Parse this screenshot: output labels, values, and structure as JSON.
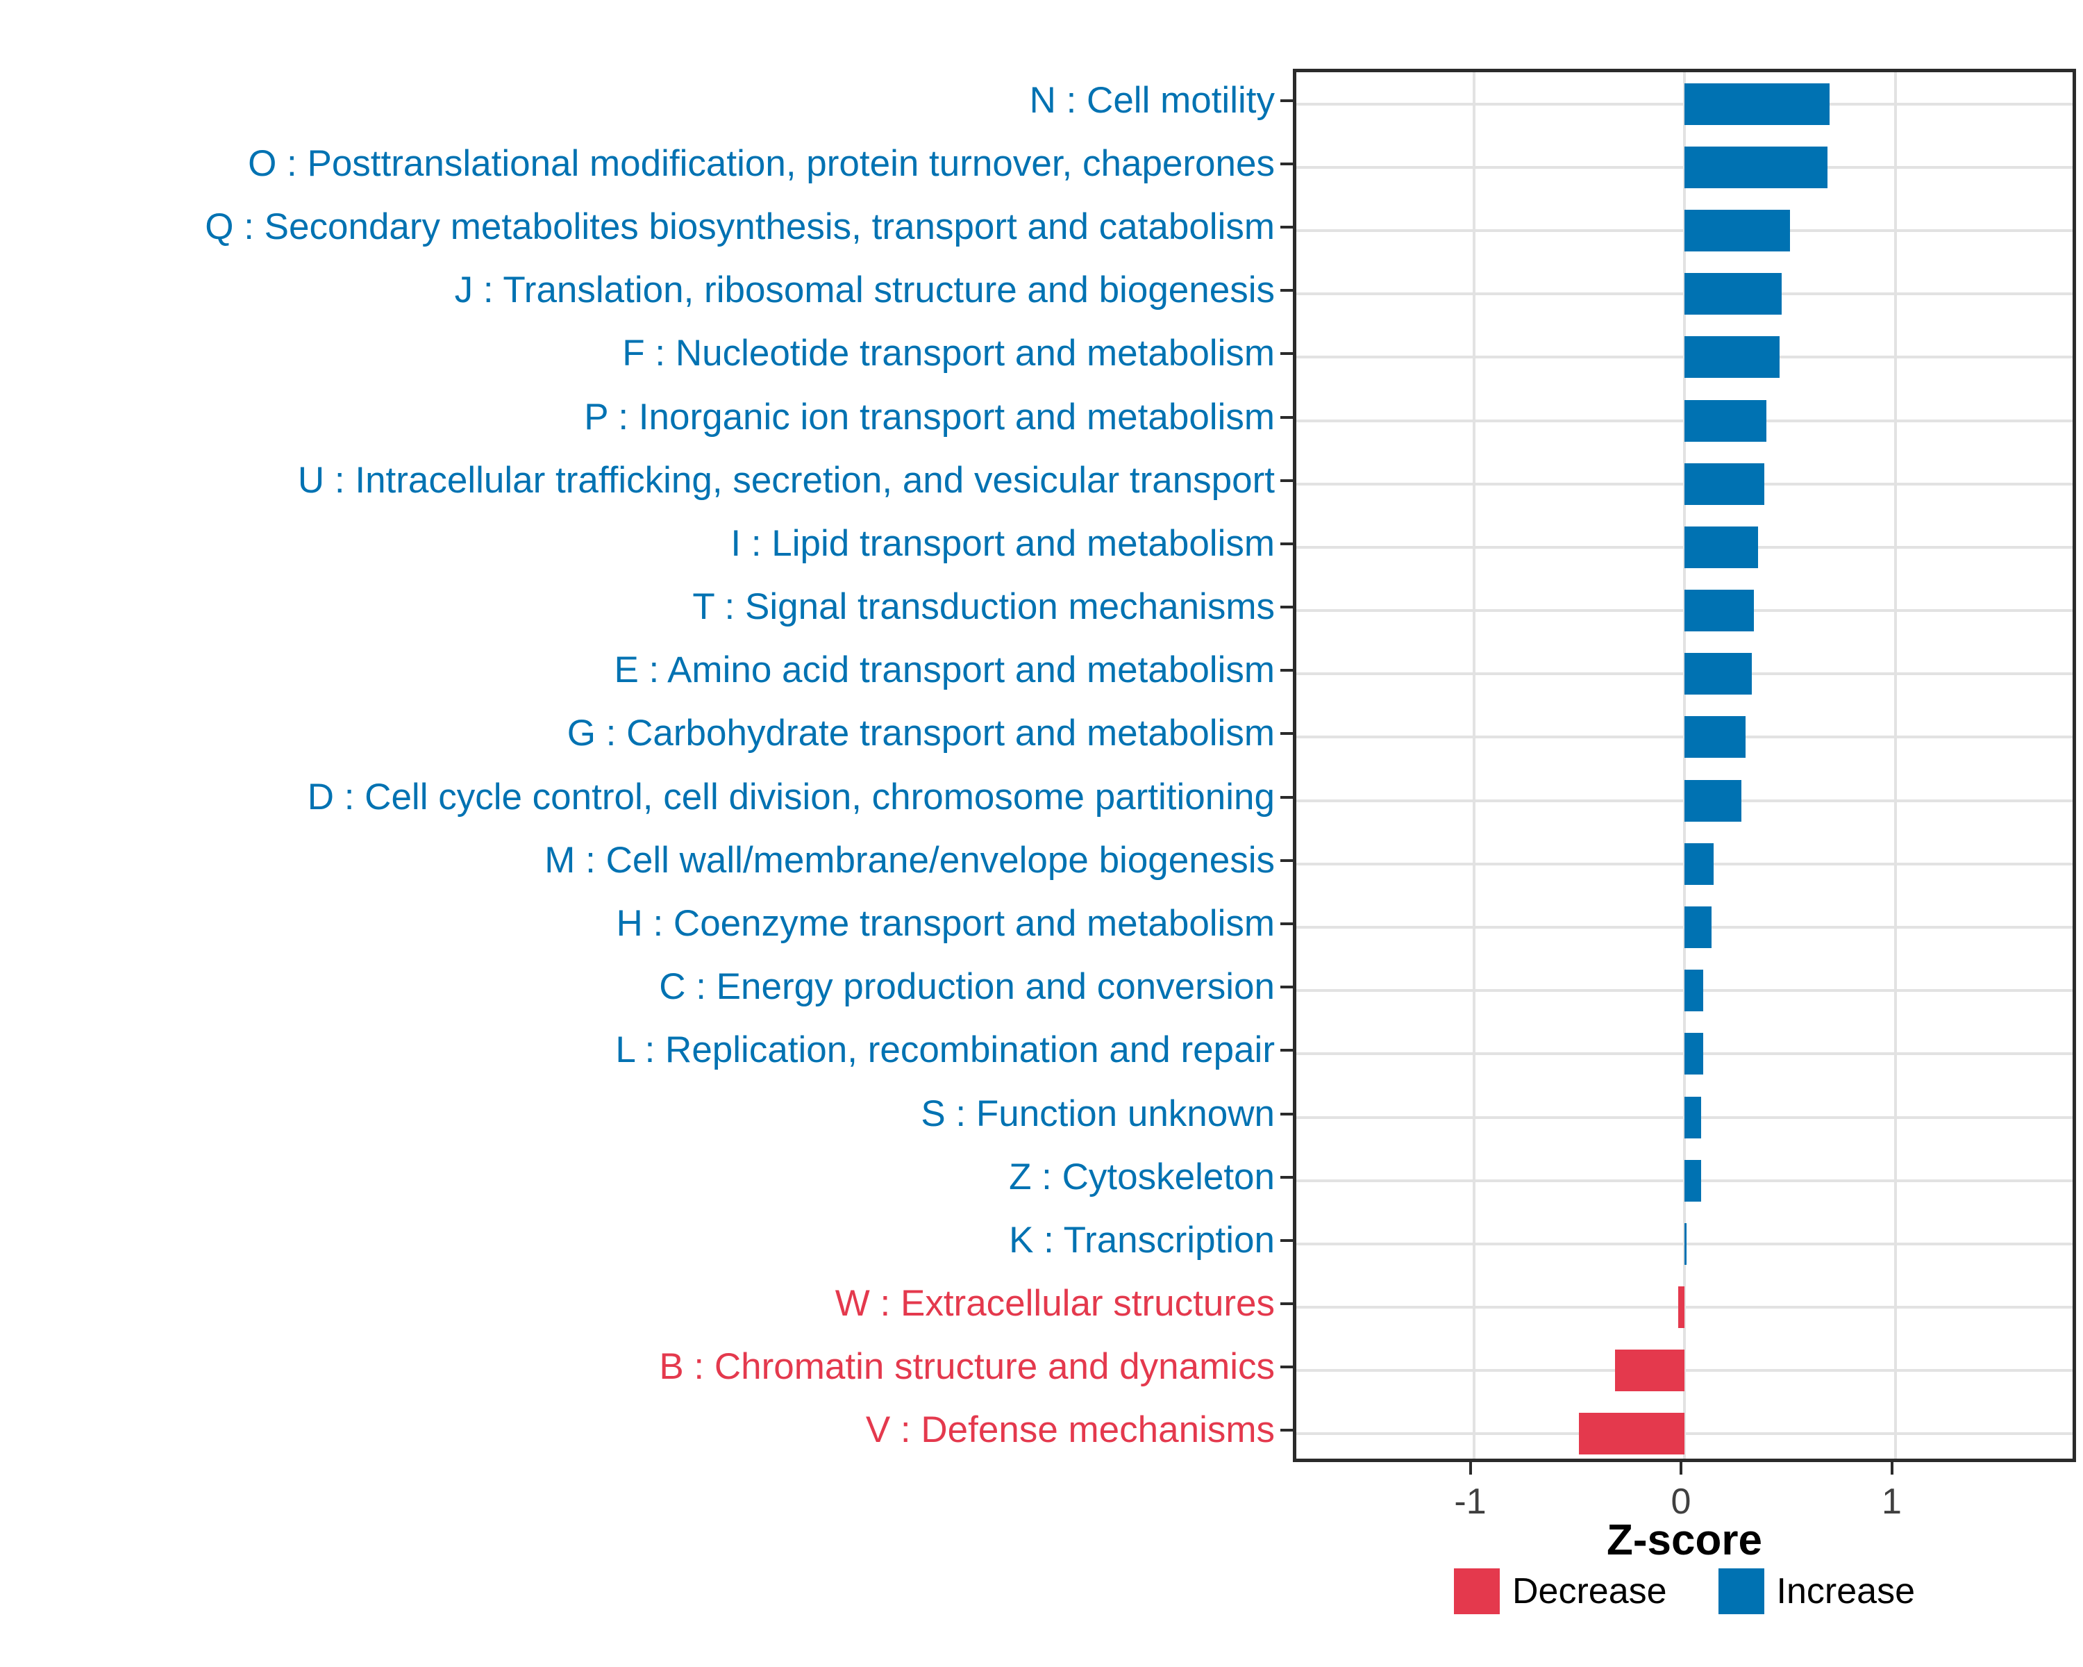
{
  "chart_data": {
    "type": "bar",
    "orientation": "horizontal",
    "xlabel": "Z-score",
    "x_ticks": [
      -1,
      0,
      1
    ],
    "x_tick_labels": [
      "-1",
      "0",
      "1"
    ],
    "xlim": [
      -1.85,
      1.87
    ],
    "grid": "on",
    "legend_position": "bottom",
    "categories": [
      "N : Cell motility",
      "O : Posttranslational modification, protein turnover, chaperones",
      "Q : Secondary metabolites biosynthesis, transport and catabolism",
      "J : Translation, ribosomal structure and biogenesis",
      "F : Nucleotide transport and metabolism",
      "P : Inorganic ion transport and metabolism",
      "U : Intracellular trafficking, secretion, and vesicular transport",
      "I : Lipid transport and metabolism",
      "T : Signal transduction mechanisms",
      "E : Amino acid transport and metabolism",
      "G : Carbohydrate transport and metabolism",
      "D : Cell cycle control, cell division, chromosome partitioning",
      "M : Cell wall/membrane/envelope biogenesis",
      "H : Coenzyme transport and metabolism",
      "C : Energy production and conversion",
      "L : Replication, recombination and repair",
      "S : Function unknown",
      "Z : Cytoskeleton",
      "K : Transcription",
      "W : Extracellular structures",
      "B : Chromatin structure and dynamics",
      "V : Defense mechanisms"
    ],
    "values": [
      0.69,
      0.68,
      0.5,
      0.46,
      0.45,
      0.39,
      0.38,
      0.35,
      0.33,
      0.32,
      0.29,
      0.27,
      0.14,
      0.13,
      0.09,
      0.09,
      0.08,
      0.08,
      0.01,
      -0.03,
      -0.33,
      -0.5
    ],
    "directions": [
      "Increase",
      "Increase",
      "Increase",
      "Increase",
      "Increase",
      "Increase",
      "Increase",
      "Increase",
      "Increase",
      "Increase",
      "Increase",
      "Increase",
      "Increase",
      "Increase",
      "Increase",
      "Increase",
      "Increase",
      "Increase",
      "Increase",
      "Decrease",
      "Decrease",
      "Decrease"
    ],
    "legend": [
      {
        "label": "Decrease",
        "color": "#E4394D"
      },
      {
        "label": "Increase",
        "color": "#0072B2"
      }
    ]
  },
  "colors": {
    "increase": "#0072B2",
    "decrease": "#E4394D",
    "gridline": "#E2E2E2",
    "axis": "#2b2b2b",
    "tick_text": "#404040"
  }
}
